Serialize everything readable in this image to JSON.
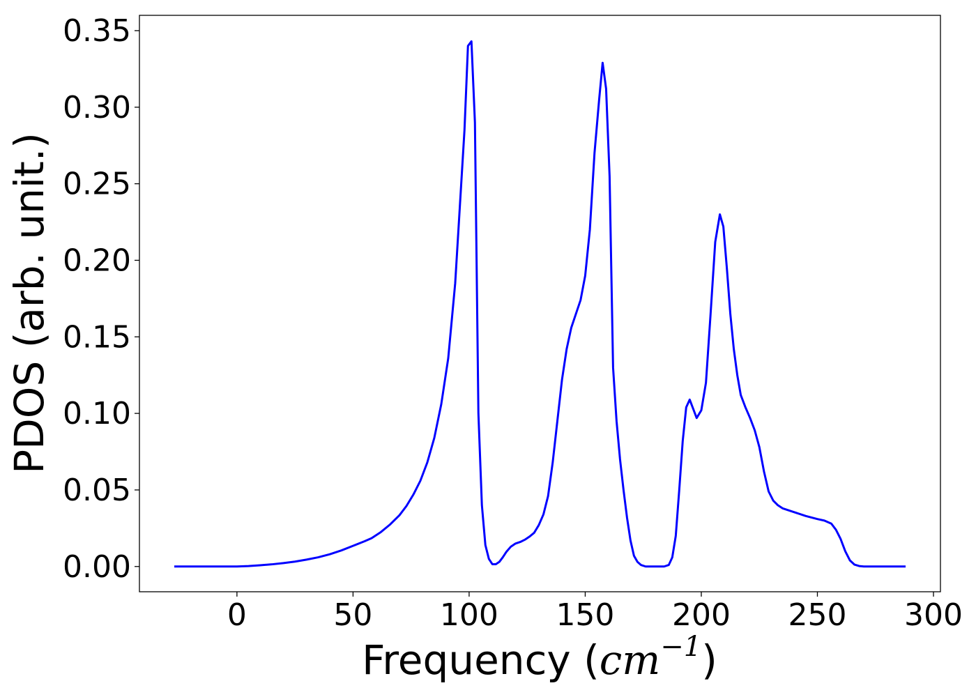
{
  "chart_data": {
    "type": "line",
    "title": "",
    "xlabel": {
      "text": "Frequency (",
      "math_base": "cm",
      "math_exp": "−1",
      "close": ")"
    },
    "ylabel": "PDOS (arb. unit.)",
    "xlim": [
      -42,
      303
    ],
    "ylim": [
      -0.0165,
      0.36
    ],
    "xticks": [
      0,
      50,
      100,
      150,
      200,
      250,
      300
    ],
    "xtick_labels": [
      "0",
      "50",
      "100",
      "150",
      "200",
      "250",
      "300"
    ],
    "yticks": [
      0.0,
      0.05,
      0.1,
      0.15,
      0.2,
      0.25,
      0.3,
      0.35
    ],
    "ytick_labels": [
      "0.00",
      "0.05",
      "0.10",
      "0.15",
      "0.20",
      "0.25",
      "0.30",
      "0.35"
    ],
    "grid": false,
    "legend": "none",
    "series": [
      {
        "color": "#0000ff",
        "x": [
          -27,
          -10,
          0,
          5,
          10,
          15,
          20,
          25,
          30,
          35,
          40,
          45,
          50,
          55,
          58,
          62,
          66,
          70,
          73,
          76,
          79,
          82,
          85,
          88,
          91,
          94,
          96,
          98,
          99.5,
          101,
          102.5,
          104,
          105.5,
          107,
          108.5,
          110,
          111.5,
          113,
          114.5,
          116,
          118,
          120,
          122,
          124,
          126,
          128,
          130,
          132,
          134,
          136,
          138,
          140,
          142,
          144,
          146,
          148,
          150,
          152,
          154,
          156,
          157.5,
          159,
          160.5,
          162,
          163.5,
          165,
          166.5,
          168,
          169.5,
          171,
          172.5,
          174,
          176,
          178,
          180,
          182,
          184,
          186,
          187.5,
          189,
          190.5,
          192,
          193.5,
          195,
          196.5,
          198,
          200,
          202,
          204,
          206,
          208,
          209.5,
          211,
          212.5,
          214,
          215.5,
          217,
          219,
          221,
          223,
          225,
          227,
          229,
          231,
          233,
          235,
          240,
          245,
          250,
          253,
          256,
          258,
          260,
          262,
          264,
          266,
          268,
          270,
          275,
          280,
          288
        ],
        "y": [
          0,
          0,
          0,
          0.0003,
          0.0008,
          0.0014,
          0.0022,
          0.0032,
          0.0045,
          0.006,
          0.008,
          0.0105,
          0.0135,
          0.0165,
          0.0185,
          0.0225,
          0.0275,
          0.0335,
          0.0395,
          0.047,
          0.056,
          0.068,
          0.084,
          0.106,
          0.136,
          0.185,
          0.235,
          0.285,
          0.34,
          0.343,
          0.29,
          0.1,
          0.04,
          0.014,
          0.005,
          0.0015,
          0.0015,
          0.003,
          0.006,
          0.0095,
          0.013,
          0.015,
          0.016,
          0.0175,
          0.0195,
          0.022,
          0.027,
          0.034,
          0.046,
          0.068,
          0.095,
          0.122,
          0.142,
          0.156,
          0.165,
          0.174,
          0.19,
          0.22,
          0.27,
          0.305,
          0.329,
          0.312,
          0.255,
          0.13,
          0.095,
          0.07,
          0.05,
          0.032,
          0.017,
          0.007,
          0.003,
          0.001,
          0,
          0,
          0,
          0,
          0,
          0.001,
          0.006,
          0.02,
          0.05,
          0.082,
          0.104,
          0.109,
          0.103,
          0.097,
          0.102,
          0.12,
          0.165,
          0.212,
          0.23,
          0.222,
          0.195,
          0.165,
          0.142,
          0.125,
          0.112,
          0.104,
          0.097,
          0.089,
          0.078,
          0.062,
          0.049,
          0.043,
          0.04,
          0.038,
          0.0355,
          0.033,
          0.031,
          0.03,
          0.028,
          0.024,
          0.018,
          0.01,
          0.004,
          0.0012,
          0.0003,
          0,
          0,
          0,
          0
        ]
      }
    ]
  }
}
